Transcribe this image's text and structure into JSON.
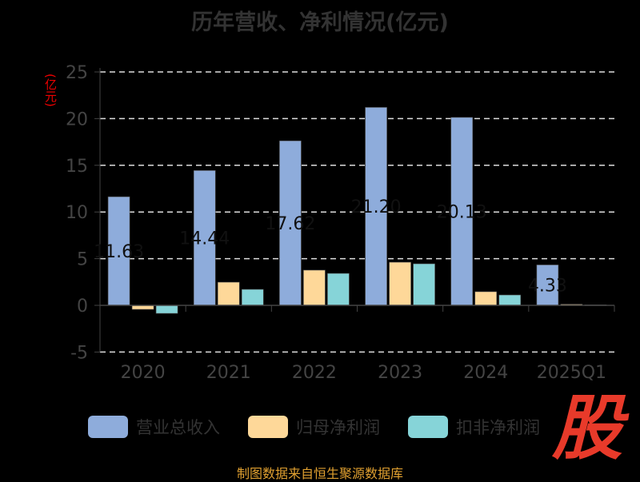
{
  "title": "历年营收、净利情况(亿元)",
  "unit_label": "(亿元)",
  "source": "制图数据来自恒生聚源数据库",
  "logo_text": "股",
  "chart_data": {
    "type": "bar",
    "title": "历年营收、净利情况(亿元)",
    "ylabel": "(亿元)",
    "ylim": [
      -5,
      25
    ],
    "yticks": [
      -5,
      0,
      5,
      10,
      15,
      20,
      25
    ],
    "grid": true,
    "legend_placement": "bottom",
    "categories": [
      "2020",
      "2021",
      "2022",
      "2023",
      "2024",
      "2025Q1"
    ],
    "series": [
      {
        "name": "营业总收入",
        "color": "#8eacdb",
        "values": [
          11.63,
          14.44,
          17.62,
          21.2,
          20.13,
          4.33
        ],
        "labels": [
          "11.63",
          "14.44",
          "17.62",
          "21.20",
          "20.13",
          "4.33"
        ]
      },
      {
        "name": "归母净利润",
        "color": "#fed899",
        "values": [
          -0.43,
          2.48,
          3.77,
          4.62,
          1.46,
          0.12
        ]
      },
      {
        "name": "扣非净利润",
        "color": "#86d4d8",
        "values": [
          -0.86,
          1.71,
          3.42,
          4.45,
          1.11,
          0.06
        ]
      }
    ]
  }
}
